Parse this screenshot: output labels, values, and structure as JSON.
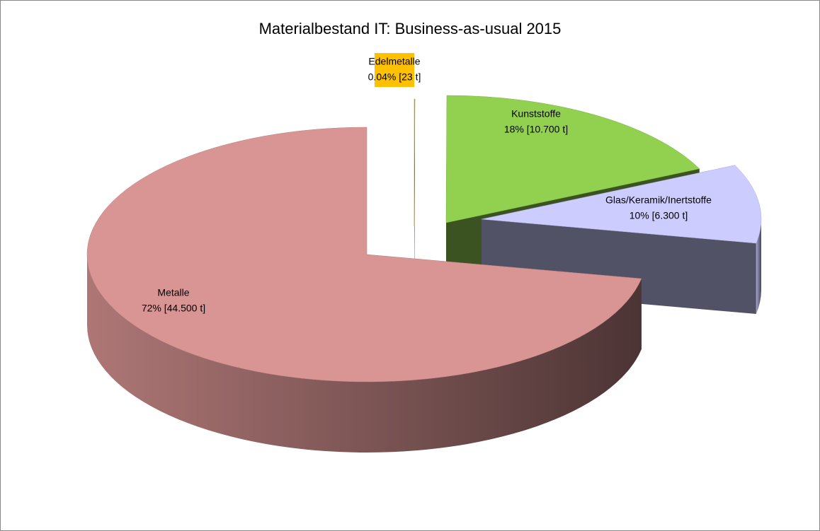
{
  "chart_data": {
    "type": "pie",
    "title": "Materialbestand IT: Business-as-usual 2015",
    "categories": [
      "Edelmetalle",
      "Kunststoffe",
      "Glas/Keramik/Inertstoffe",
      "Metalle"
    ],
    "values": [
      0.04,
      18,
      10,
      72
    ],
    "value_labels": [
      "0.04% [23 t]",
      "18%  [10.700 t]",
      "10%  [6.300 t]",
      "72%  [44.500 t]"
    ],
    "colors": [
      "#d4a017",
      "#92d050",
      "#ccccff",
      "#d99594"
    ]
  }
}
